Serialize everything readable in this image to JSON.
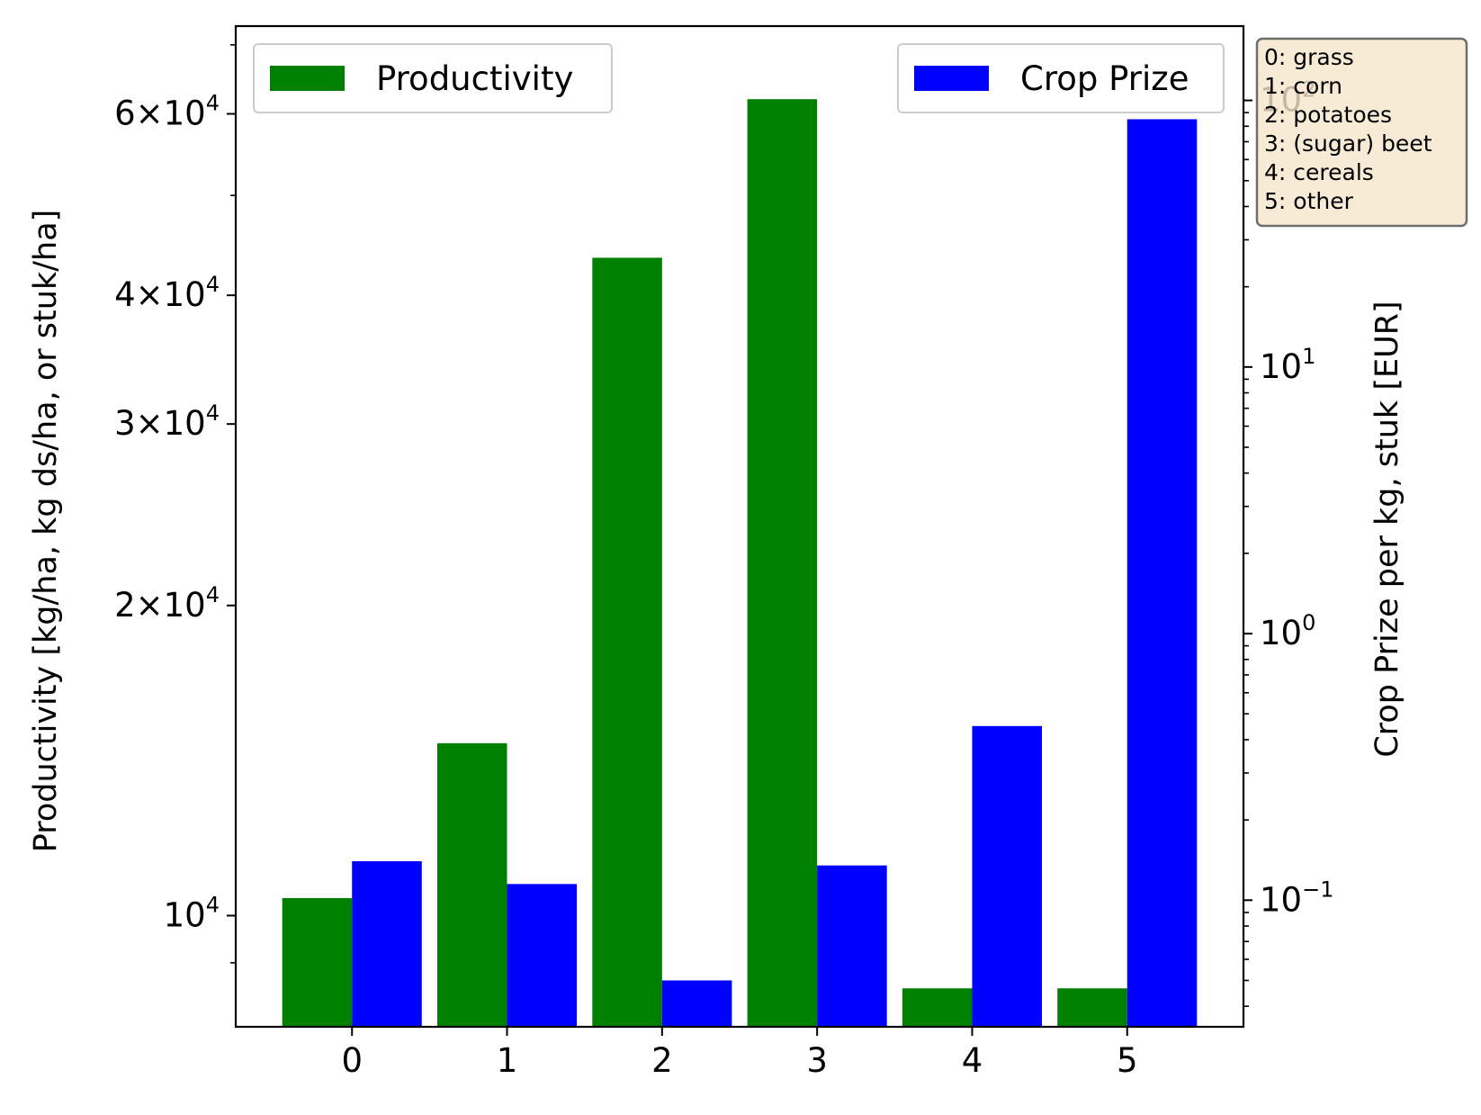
{
  "chart_data": {
    "type": "bar",
    "categories": [
      "0",
      "1",
      "2",
      "3",
      "4",
      "5"
    ],
    "series": [
      {
        "name": "Productivity",
        "axis": "left",
        "color": "#008000",
        "values": [
          10400,
          14700,
          43500,
          62000,
          8500,
          8500
        ]
      },
      {
        "name": "Crop Prize",
        "axis": "right",
        "color": "#0000ff",
        "values": [
          0.14,
          0.115,
          0.05,
          0.135,
          0.45,
          85
        ]
      }
    ],
    "y_left": {
      "label": "Productivity [kg/ha, kg ds/ha, or stuk/ha]",
      "scale": "log",
      "lim": [
        7800,
        73000
      ],
      "major_ticks": [
        {
          "value": 10000,
          "coef": "",
          "exp": "4"
        },
        {
          "value": 20000,
          "coef": "2",
          "exp": "4"
        },
        {
          "value": 30000,
          "coef": "3",
          "exp": "4"
        },
        {
          "value": 40000,
          "coef": "4",
          "exp": "4"
        },
        {
          "value": 60000,
          "coef": "6",
          "exp": "4"
        }
      ],
      "minor_ticks": [
        9000,
        50000,
        70000
      ]
    },
    "y_right": {
      "label": "Crop Prize per kg, stuk [EUR]",
      "scale": "log",
      "lim": [
        0.0335,
        190
      ],
      "major_ticks": [
        {
          "value": 0.1,
          "exp": "−1"
        },
        {
          "value": 1,
          "exp": "0"
        },
        {
          "value": 10,
          "exp": "1"
        },
        {
          "value": 100,
          "exp": "2"
        }
      ]
    },
    "x_lim": [
      -0.75,
      5.75
    ],
    "legend_left": "upper left",
    "legend_right": "upper right",
    "grid": false
  },
  "annotation": {
    "lines": [
      "0: grass",
      "1: corn",
      "2: potatoes",
      "3: (sugar) beet",
      "4: cereals",
      "5: other"
    ],
    "background": "#f5e6cc"
  }
}
